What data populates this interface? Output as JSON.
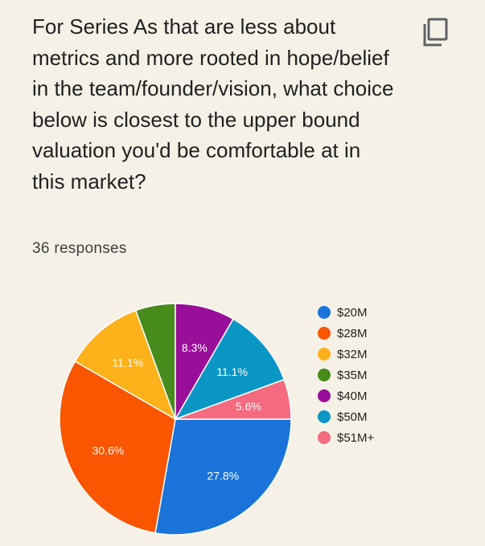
{
  "question": "For Series As that are less about metrics and more rooted in hope/belief in the team/founder/vision, what choice below is closest to the upper bound valuation you'd be comfortable at in this market?",
  "responses_text": "36 responses",
  "copy_icon": "copy-icon",
  "chart_data": {
    "type": "pie",
    "title": "",
    "total_responses": 36,
    "legend_position": "right",
    "slices": [
      {
        "label": "$20M",
        "value": 10,
        "percent_label": "27.8%",
        "color": "#1a73d9"
      },
      {
        "label": "$28M",
        "value": 11,
        "percent_label": "30.6%",
        "color": "#fa5500"
      },
      {
        "label": "$32M",
        "value": 4,
        "percent_label": "11.1%",
        "color": "#fdb11a"
      },
      {
        "label": "$35M",
        "value": 2,
        "percent_label": "",
        "color": "#468b1c"
      },
      {
        "label": "$40M",
        "value": 3,
        "percent_label": "8.3%",
        "color": "#990e99"
      },
      {
        "label": "$50M",
        "value": 4,
        "percent_label": "11.1%",
        "color": "#0b97c6"
      },
      {
        "label": "$51M+",
        "value": 2,
        "percent_label": "5.6%",
        "color": "#f56a7f"
      }
    ]
  }
}
